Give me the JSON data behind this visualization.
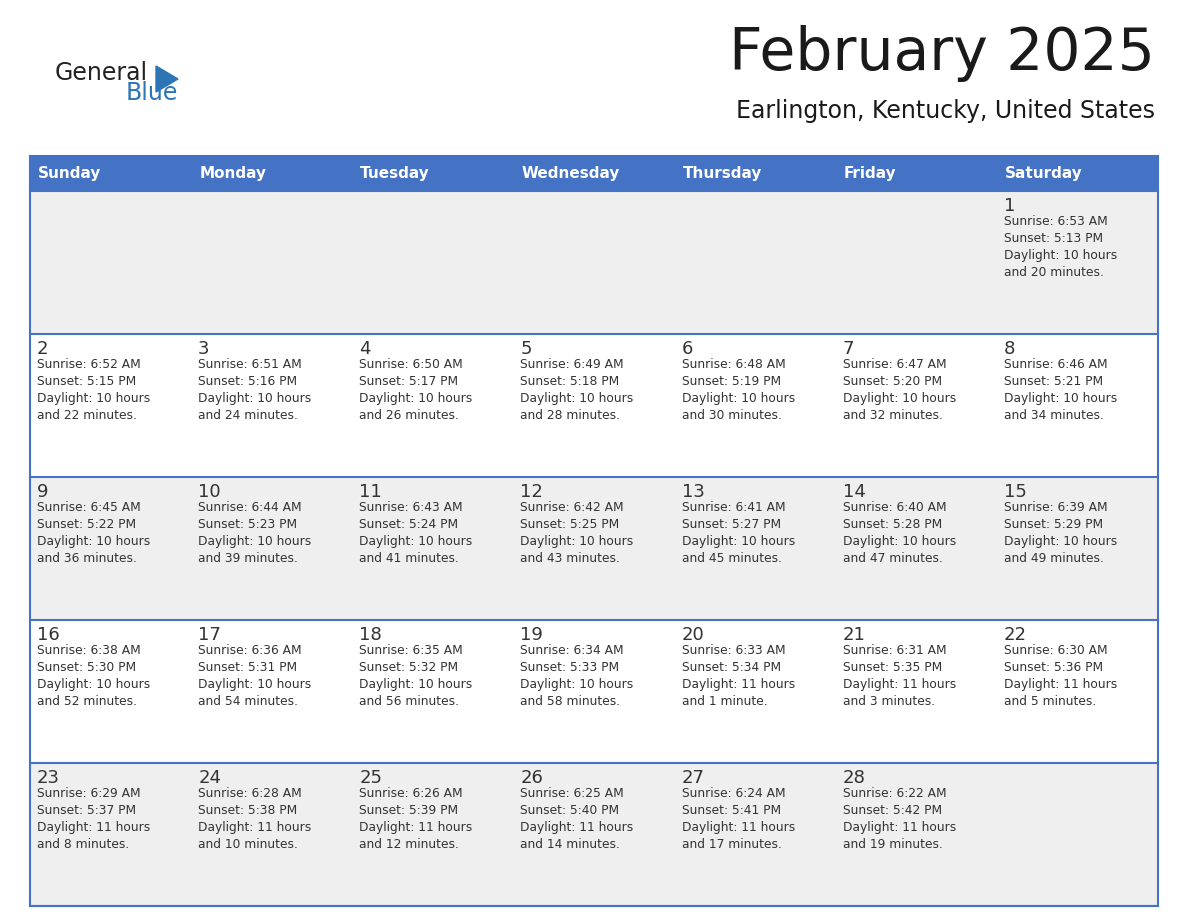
{
  "title": "February 2025",
  "subtitle": "Earlington, Kentucky, United States",
  "header_bg": "#4472C4",
  "header_text_color": "#FFFFFF",
  "cell_bg_odd": "#EFEFEF",
  "cell_bg_even": "#FFFFFF",
  "day_headers": [
    "Sunday",
    "Monday",
    "Tuesday",
    "Wednesday",
    "Thursday",
    "Friday",
    "Saturday"
  ],
  "title_color": "#1a1a1a",
  "subtitle_color": "#1a1a1a",
  "day_num_color": "#333333",
  "info_color": "#333333",
  "grid_color": "#4472C4",
  "logo_general_color": "#222222",
  "logo_blue_color": "#2E75B6",
  "weeks": [
    [
      {
        "day": null,
        "info": ""
      },
      {
        "day": null,
        "info": ""
      },
      {
        "day": null,
        "info": ""
      },
      {
        "day": null,
        "info": ""
      },
      {
        "day": null,
        "info": ""
      },
      {
        "day": null,
        "info": ""
      },
      {
        "day": 1,
        "info": "Sunrise: 6:53 AM\nSunset: 5:13 PM\nDaylight: 10 hours\nand 20 minutes."
      }
    ],
    [
      {
        "day": 2,
        "info": "Sunrise: 6:52 AM\nSunset: 5:15 PM\nDaylight: 10 hours\nand 22 minutes."
      },
      {
        "day": 3,
        "info": "Sunrise: 6:51 AM\nSunset: 5:16 PM\nDaylight: 10 hours\nand 24 minutes."
      },
      {
        "day": 4,
        "info": "Sunrise: 6:50 AM\nSunset: 5:17 PM\nDaylight: 10 hours\nand 26 minutes."
      },
      {
        "day": 5,
        "info": "Sunrise: 6:49 AM\nSunset: 5:18 PM\nDaylight: 10 hours\nand 28 minutes."
      },
      {
        "day": 6,
        "info": "Sunrise: 6:48 AM\nSunset: 5:19 PM\nDaylight: 10 hours\nand 30 minutes."
      },
      {
        "day": 7,
        "info": "Sunrise: 6:47 AM\nSunset: 5:20 PM\nDaylight: 10 hours\nand 32 minutes."
      },
      {
        "day": 8,
        "info": "Sunrise: 6:46 AM\nSunset: 5:21 PM\nDaylight: 10 hours\nand 34 minutes."
      }
    ],
    [
      {
        "day": 9,
        "info": "Sunrise: 6:45 AM\nSunset: 5:22 PM\nDaylight: 10 hours\nand 36 minutes."
      },
      {
        "day": 10,
        "info": "Sunrise: 6:44 AM\nSunset: 5:23 PM\nDaylight: 10 hours\nand 39 minutes."
      },
      {
        "day": 11,
        "info": "Sunrise: 6:43 AM\nSunset: 5:24 PM\nDaylight: 10 hours\nand 41 minutes."
      },
      {
        "day": 12,
        "info": "Sunrise: 6:42 AM\nSunset: 5:25 PM\nDaylight: 10 hours\nand 43 minutes."
      },
      {
        "day": 13,
        "info": "Sunrise: 6:41 AM\nSunset: 5:27 PM\nDaylight: 10 hours\nand 45 minutes."
      },
      {
        "day": 14,
        "info": "Sunrise: 6:40 AM\nSunset: 5:28 PM\nDaylight: 10 hours\nand 47 minutes."
      },
      {
        "day": 15,
        "info": "Sunrise: 6:39 AM\nSunset: 5:29 PM\nDaylight: 10 hours\nand 49 minutes."
      }
    ],
    [
      {
        "day": 16,
        "info": "Sunrise: 6:38 AM\nSunset: 5:30 PM\nDaylight: 10 hours\nand 52 minutes."
      },
      {
        "day": 17,
        "info": "Sunrise: 6:36 AM\nSunset: 5:31 PM\nDaylight: 10 hours\nand 54 minutes."
      },
      {
        "day": 18,
        "info": "Sunrise: 6:35 AM\nSunset: 5:32 PM\nDaylight: 10 hours\nand 56 minutes."
      },
      {
        "day": 19,
        "info": "Sunrise: 6:34 AM\nSunset: 5:33 PM\nDaylight: 10 hours\nand 58 minutes."
      },
      {
        "day": 20,
        "info": "Sunrise: 6:33 AM\nSunset: 5:34 PM\nDaylight: 11 hours\nand 1 minute."
      },
      {
        "day": 21,
        "info": "Sunrise: 6:31 AM\nSunset: 5:35 PM\nDaylight: 11 hours\nand 3 minutes."
      },
      {
        "day": 22,
        "info": "Sunrise: 6:30 AM\nSunset: 5:36 PM\nDaylight: 11 hours\nand 5 minutes."
      }
    ],
    [
      {
        "day": 23,
        "info": "Sunrise: 6:29 AM\nSunset: 5:37 PM\nDaylight: 11 hours\nand 8 minutes."
      },
      {
        "day": 24,
        "info": "Sunrise: 6:28 AM\nSunset: 5:38 PM\nDaylight: 11 hours\nand 10 minutes."
      },
      {
        "day": 25,
        "info": "Sunrise: 6:26 AM\nSunset: 5:39 PM\nDaylight: 11 hours\nand 12 minutes."
      },
      {
        "day": 26,
        "info": "Sunrise: 6:25 AM\nSunset: 5:40 PM\nDaylight: 11 hours\nand 14 minutes."
      },
      {
        "day": 27,
        "info": "Sunrise: 6:24 AM\nSunset: 5:41 PM\nDaylight: 11 hours\nand 17 minutes."
      },
      {
        "day": 28,
        "info": "Sunrise: 6:22 AM\nSunset: 5:42 PM\nDaylight: 11 hours\nand 19 minutes."
      },
      {
        "day": null,
        "info": ""
      }
    ]
  ]
}
